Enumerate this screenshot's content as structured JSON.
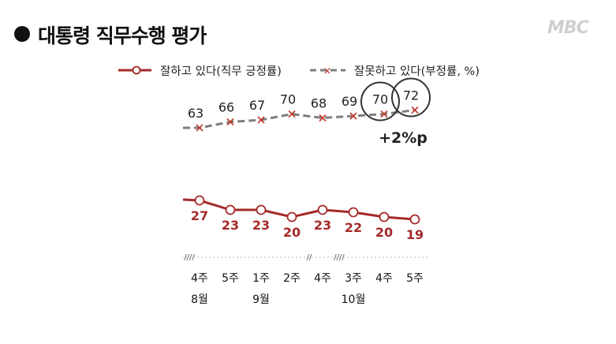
{
  "title": "대통령 직무수행 평가",
  "logo": "MBC",
  "colors": {
    "approve": "#a52a2a",
    "disapprove": "#7d7d7d",
    "circle": "#333333"
  },
  "chart_data": {
    "type": "line",
    "categories": [
      "4주",
      "5주",
      "1주",
      "2주",
      "4주",
      "3주",
      "4주",
      "5주"
    ],
    "month_labels": [
      {
        "label": "8월",
        "index": 0
      },
      {
        "label": "9월",
        "index": 2
      },
      {
        "label": "10월",
        "index": 5
      }
    ],
    "axis_breaks": [
      "////",
      "//",
      "////"
    ],
    "series": [
      {
        "name": "잘하고 있다(직무 긍정률)",
        "values": [
          27,
          23,
          23,
          20,
          23,
          22,
          20,
          19
        ],
        "marker": "circle"
      },
      {
        "name": "잘못하고 있다(부정률, %)",
        "values": [
          63,
          66,
          67,
          70,
          68,
          69,
          70,
          72
        ],
        "marker": "x"
      }
    ],
    "annotation": "+2%p",
    "legend_position": "top",
    "grid": false
  }
}
